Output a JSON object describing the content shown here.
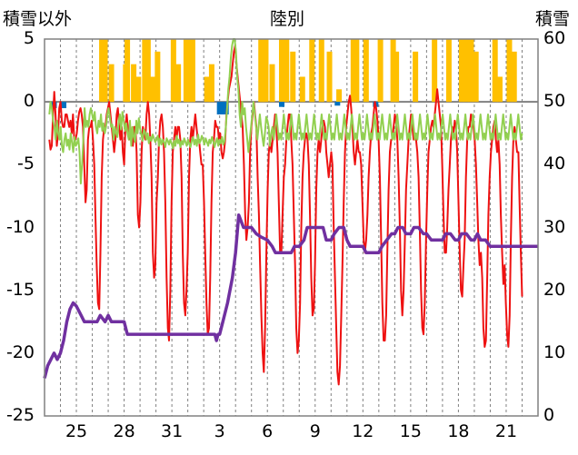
{
  "chart_data": {
    "type": "line",
    "title": "陸別",
    "ylabel_left": "積雪以外",
    "ylabel_right": "積雪",
    "ylim_left": [
      -25,
      5
    ],
    "ylim_right": [
      0,
      60
    ],
    "yticks_left": [
      "5",
      "0",
      "-5",
      "-10",
      "-15",
      "-20",
      "-25"
    ],
    "yticks_right": [
      "60",
      "50",
      "40",
      "30",
      "20",
      "10",
      "0"
    ],
    "x_tick_labels": [
      "25",
      "28",
      "31",
      "3",
      "6",
      "9",
      "12",
      "15",
      "18",
      "21"
    ],
    "x_tick_days": [
      2,
      5,
      8,
      11,
      14,
      17,
      20,
      23,
      26,
      29
    ],
    "day_range": [
      0,
      31
    ],
    "grid": true,
    "colors": {
      "temperature": "#ee1111",
      "humidity_like": "#92d050",
      "snow_depth": "#7030a0",
      "sunshine": "#ffc000",
      "precipitation": "#0070c0",
      "zero_line": "#808080",
      "grid": "#808080"
    },
    "series": [
      {
        "key": "temperature",
        "axis": "left",
        "values": [
          -3,
          -3.8,
          -3.5,
          -1,
          0.8,
          -1,
          -3.5,
          -2.5,
          -0.5,
          0,
          -1.5,
          -2,
          -2,
          -1,
          -1,
          -1.5,
          -2,
          -1.5,
          -2.5,
          -1,
          -3,
          -3,
          -2.5,
          -1.5,
          -0.8,
          -0.5,
          -1,
          -2,
          -5,
          -8,
          -7,
          -3,
          -2,
          -2,
          -1.5,
          -3,
          -5,
          -9,
          -13,
          -16,
          -16.5,
          -12,
          -6,
          -3,
          -2,
          -2,
          -1,
          -0.5,
          0,
          -1,
          -2,
          -3,
          -4,
          -3,
          -1,
          -0.5,
          -2,
          -3,
          -2,
          -4,
          -5,
          -2,
          -1,
          -2,
          -3,
          -2,
          -3,
          -3.5,
          -2,
          -2,
          -4,
          -9,
          -10,
          -8,
          -4,
          -2,
          -2.5,
          -3,
          -1,
          0,
          -1,
          -3,
          -6,
          -12,
          -14,
          -13,
          -8,
          -6,
          -3,
          -1.5,
          -1,
          -2,
          -4,
          -8,
          -14,
          -18,
          -19,
          -15,
          -8,
          -4,
          -3,
          -2,
          -3,
          -2,
          -2,
          -3,
          -6,
          -12,
          -16,
          -17,
          -15,
          -12,
          -6,
          -3,
          -2,
          -3,
          -2,
          -1,
          -2,
          -3,
          -3,
          -4,
          -5,
          -5,
          -8,
          -12,
          -16,
          -18.5,
          -18,
          -14,
          -8,
          -4,
          -3,
          -1.5,
          -2,
          -2,
          -3,
          -2.5,
          -4,
          -4.5,
          -4,
          -3,
          -1,
          0,
          1,
          1.5,
          2,
          3,
          4,
          4.5,
          3,
          2,
          1,
          0,
          -1,
          -2,
          -5,
          -9,
          -11,
          -10,
          -8,
          -4,
          -2,
          -1,
          0,
          -1,
          -2,
          -6,
          -9,
          -13,
          -17,
          -20,
          -21.5,
          -18,
          -12,
          -7,
          -4,
          -3,
          -4,
          -3,
          -2,
          -1,
          -2,
          -4,
          -8,
          -12,
          -12,
          -9,
          -6,
          -5,
          -3,
          -2,
          -1,
          -1,
          -3,
          -5,
          -9,
          -13,
          -18,
          -20,
          -19,
          -16,
          -10,
          -6,
          -4,
          -3,
          -2.5,
          -3,
          -5,
          -9,
          -14,
          -17,
          -16.5,
          -13,
          -7,
          -4,
          -3,
          -4,
          -3,
          -2,
          -1.5,
          -2,
          -4,
          -5,
          -6,
          -5,
          -4,
          -5,
          -10,
          -14,
          -18,
          -21.5,
          -22.5,
          -21,
          -17,
          -13,
          -8,
          -4,
          -2,
          -1,
          0,
          0.5,
          -0.5,
          -2,
          -4,
          -5,
          -4,
          -3,
          -4,
          -4,
          -5,
          -8,
          -11,
          -12,
          -11,
          -9,
          -6,
          -4,
          -2.5,
          -2,
          -1,
          0,
          -0.5,
          -1.5,
          -3,
          -6,
          -11,
          -16,
          -19,
          -19,
          -17,
          -12,
          -7,
          -4,
          -3,
          -3,
          -2,
          -1,
          -1.5,
          -3,
          -6,
          -10,
          -15,
          -17,
          -15,
          -11,
          -7,
          -5,
          -3,
          -2,
          -1,
          -2,
          -3,
          -2.5,
          -3,
          -4,
          -6,
          -10,
          -15,
          -18,
          -18.5,
          -16,
          -11,
          -7,
          -4,
          -3,
          -2,
          -1.5,
          -2,
          -1,
          0,
          1,
          0,
          -1,
          -2,
          -5,
          -9,
          -12,
          -12,
          -10,
          -7,
          -5,
          -3,
          -2,
          -2.5,
          -1.5,
          -2,
          -4,
          -8,
          -12,
          -15,
          -15.5,
          -13,
          -11,
          -6,
          -3,
          -2,
          -2,
          -1,
          -1.5,
          -2,
          -3,
          -5,
          -8,
          -11,
          -13,
          -12,
          -14,
          -18,
          -19.5,
          -19,
          -14,
          -9,
          -6,
          -4,
          -3,
          -2,
          -1.5,
          -3,
          -4,
          -3,
          -5,
          -9,
          -12,
          -14.5,
          -13,
          -16,
          -18.5,
          -19.5,
          -17,
          -11,
          -6,
          -3,
          -2,
          -3,
          -4,
          -4,
          -8,
          -12,
          -15.5
        ]
      },
      {
        "key": "humidity_like",
        "axis": "left",
        "values": [
          -1,
          0,
          -0.5,
          -1.5,
          -2,
          -3,
          -1.5,
          -2.5,
          -3,
          -2,
          -3.5,
          -4,
          -3,
          -2.5,
          -3.5,
          -3,
          -3.8,
          -2.5,
          -3.2,
          -4,
          -2.8,
          -3.5,
          -3.3,
          -2.9,
          -4,
          -6.5,
          -5,
          -3,
          -0.5,
          -2,
          -1.5,
          -2,
          -1,
          -0.5,
          -1,
          -1.5,
          -0.8,
          -2,
          -2.5,
          -1.5,
          -2,
          -1,
          -2.3,
          -1.7,
          -2.5,
          -2,
          -1,
          -0.5,
          -1.2,
          -2,
          -1.8,
          -3,
          -2,
          -2.5,
          -2.8,
          -1.5,
          -1,
          -2.2,
          -0.8,
          -1.5,
          -2.3,
          -1.7,
          -2.5,
          -3,
          -1.5,
          -3.5,
          -2,
          -2.8,
          -3.2,
          -1.5,
          -2.5,
          -1.3,
          -2.1,
          -2.6,
          -3.1,
          -2.2,
          -2.4,
          -3,
          -2.5,
          -3.3,
          -2.8,
          -3.1,
          -2.6,
          -2.9,
          -3.2,
          -3,
          -2.7,
          -3.5,
          -2.9,
          -3.4,
          -3,
          -3.2,
          -3.6,
          -2.9,
          -3.1,
          -3.4,
          -3,
          -3.3,
          -3.7,
          -3.1,
          -3.5,
          -2.7,
          -3.3,
          -3,
          -3.6,
          -3.1,
          -3.4,
          -2.9,
          -3.2,
          -3.5,
          -3,
          -3.3,
          -3.6,
          -3.1,
          -2.8,
          -3.4,
          -3,
          -3.5,
          -2.6,
          -3.3,
          -3.1,
          -2.7,
          -3,
          -3.4,
          -2.9,
          -3.2,
          -3.5,
          -3,
          -3.3,
          -2.8,
          -3.1,
          -3.6,
          -3.2,
          -2.9,
          -3.5,
          -3,
          -3.3,
          -2.8,
          -3.4,
          -3.1,
          -2,
          -0.5,
          1,
          2,
          3.5,
          4.5,
          5,
          5,
          4,
          2,
          1,
          -1,
          -2,
          0,
          -1,
          -0.5,
          -2,
          -3,
          -4,
          -3,
          -2,
          -1,
          0,
          -1,
          -2,
          -3,
          -2,
          -1,
          -2,
          -2.8,
          -3.5,
          -2.5,
          -1.2,
          -1.5,
          -2,
          -3.5,
          -2.5,
          -2,
          -3,
          -2,
          -1,
          -2,
          -3,
          -2.5,
          -3,
          -2,
          -1,
          -2,
          -3,
          -2.5,
          -3,
          -2,
          -1,
          -2,
          -3,
          -2.5,
          -3,
          -2,
          -1,
          -2,
          -3,
          -2.5,
          -3,
          -2,
          -1,
          -2,
          -3,
          -2.5,
          -3,
          -2,
          -1,
          -2,
          -3,
          -2.5,
          -3,
          -2,
          -1,
          -2,
          -3,
          -2.5,
          -3,
          -2,
          -1,
          -2,
          -3,
          -2.5,
          -3,
          -2,
          -1,
          -2,
          -3,
          -2.5,
          -3,
          -2,
          -1,
          -2,
          -3,
          -2.5,
          -3,
          -2,
          -1,
          -2,
          -3,
          -2.5,
          -3,
          -2,
          -1,
          -2,
          -3,
          -2.5,
          -3,
          -2,
          -1,
          -2,
          -3,
          -2.5,
          -3,
          -2,
          -1,
          -2,
          -3,
          -2.5,
          -3,
          -2,
          -1,
          -2,
          -3,
          -2.5,
          -3,
          -2,
          -1,
          -2,
          -3,
          -2.5,
          -3,
          -2,
          -1,
          -2,
          -3,
          -2.5,
          -3,
          -2,
          -1,
          -2,
          -3,
          -2.5,
          -3,
          -2,
          -1,
          -2,
          -3,
          -2.5,
          -3,
          -2,
          -1,
          -2,
          -3,
          -2.5,
          -3,
          -2,
          -1,
          -2,
          -3,
          -2.5,
          -3,
          -2,
          -1,
          -2,
          -3,
          -2.5,
          -3,
          -2,
          -1,
          -2,
          -3,
          -2.5,
          -3,
          -2,
          -1,
          -2,
          -3,
          -2.5,
          -3,
          -2,
          -1,
          -2,
          -3,
          -2.5,
          -3,
          -2,
          -1,
          -2,
          -3,
          -2.5,
          -3,
          -2,
          -1,
          -2,
          -3,
          -2.5,
          -3,
          -2,
          -1,
          -2,
          -3,
          -2.5,
          -3,
          -2,
          -1,
          -2,
          -3,
          -2.5,
          -3,
          -2,
          -1,
          -2,
          -3,
          -2.5,
          -3,
          -2,
          -1,
          -2,
          -3,
          -2.5,
          -3,
          -2,
          -1,
          -2,
          -3,
          -2.5,
          -3,
          -2,
          -1,
          -2,
          -3,
          -2.5
        ]
      },
      {
        "key": "snow_depth",
        "axis": "right",
        "step_points": [
          [
            0,
            6
          ],
          [
            0.2,
            8
          ],
          [
            0.4,
            9
          ],
          [
            0.6,
            10
          ],
          [
            0.8,
            9
          ],
          [
            1,
            10
          ],
          [
            1.2,
            12
          ],
          [
            1.4,
            15
          ],
          [
            1.6,
            17
          ],
          [
            1.8,
            18
          ],
          [
            2,
            17.5
          ],
          [
            2.3,
            16
          ],
          [
            2.5,
            15
          ],
          [
            3.3,
            15
          ],
          [
            3.5,
            16
          ],
          [
            3.8,
            15
          ],
          [
            4,
            16
          ],
          [
            4.2,
            15
          ],
          [
            5,
            15
          ],
          [
            5.2,
            13
          ],
          [
            10.7,
            13
          ],
          [
            10.8,
            12
          ],
          [
            10.9,
            13
          ],
          [
            11,
            13
          ],
          [
            11.2,
            15
          ],
          [
            11.5,
            18
          ],
          [
            11.8,
            22
          ],
          [
            12,
            26
          ],
          [
            12.2,
            32
          ],
          [
            12.5,
            30
          ],
          [
            13,
            30
          ],
          [
            13.3,
            29
          ],
          [
            13.6,
            28.5
          ],
          [
            14,
            28
          ],
          [
            14.3,
            27
          ],
          [
            14.5,
            26
          ],
          [
            15.5,
            26
          ],
          [
            15.7,
            27
          ],
          [
            16,
            27
          ],
          [
            16.3,
            28
          ],
          [
            16.5,
            30
          ],
          [
            17.5,
            30
          ],
          [
            17.7,
            28
          ],
          [
            18,
            28
          ],
          [
            18.2,
            29
          ],
          [
            18.5,
            30
          ],
          [
            18.8,
            30
          ],
          [
            19,
            28
          ],
          [
            19.2,
            27
          ],
          [
            20,
            27
          ],
          [
            20.2,
            26
          ],
          [
            21,
            26
          ],
          [
            21.2,
            27
          ],
          [
            21.5,
            28
          ],
          [
            21.8,
            29
          ],
          [
            22,
            29
          ],
          [
            22.2,
            30
          ],
          [
            22.5,
            30
          ],
          [
            22.7,
            29
          ],
          [
            23,
            29
          ],
          [
            23.2,
            30
          ],
          [
            23.5,
            30
          ],
          [
            23.8,
            29
          ],
          [
            24,
            29
          ],
          [
            24.3,
            28
          ],
          [
            25,
            28
          ],
          [
            25.2,
            29
          ],
          [
            25.5,
            29
          ],
          [
            25.8,
            28
          ],
          [
            26,
            28
          ],
          [
            26.2,
            29
          ],
          [
            26.5,
            29
          ],
          [
            26.8,
            28
          ],
          [
            27,
            28
          ],
          [
            27.2,
            29
          ],
          [
            27.4,
            28
          ],
          [
            27.7,
            28
          ],
          [
            28,
            27
          ],
          [
            31,
            27
          ]
        ]
      }
    ],
    "sunshine_bars_left_units": [
      [
        3.6,
        5
      ],
      [
        3.8,
        5
      ],
      [
        4.2,
        3
      ],
      [
        5.1,
        3
      ],
      [
        5.2,
        5
      ],
      [
        5.6,
        3
      ],
      [
        5.9,
        2
      ],
      [
        6.3,
        5
      ],
      [
        6.5,
        5
      ],
      [
        6.8,
        2
      ],
      [
        7.1,
        4
      ],
      [
        8.1,
        5
      ],
      [
        8.4,
        3
      ],
      [
        8.9,
        5
      ],
      [
        9.1,
        5
      ],
      [
        9.3,
        5
      ],
      [
        10.2,
        2
      ],
      [
        10.5,
        3
      ],
      [
        13.6,
        5
      ],
      [
        13.7,
        4
      ],
      [
        13.9,
        5
      ],
      [
        14.3,
        3
      ],
      [
        14.9,
        5
      ],
      [
        15.2,
        5
      ],
      [
        15.6,
        4
      ],
      [
        16.2,
        2
      ],
      [
        16.8,
        5
      ],
      [
        17.4,
        5
      ],
      [
        17.9,
        4
      ],
      [
        18.5,
        1
      ],
      [
        19.4,
        5
      ],
      [
        19.6,
        5
      ],
      [
        20.2,
        5
      ],
      [
        21.1,
        5
      ],
      [
        21.9,
        5
      ],
      [
        22.1,
        4
      ],
      [
        23.3,
        4
      ],
      [
        24.5,
        5
      ],
      [
        25.4,
        5
      ],
      [
        26.2,
        5
      ],
      [
        26.5,
        5
      ],
      [
        26.8,
        5
      ],
      [
        27.1,
        4
      ],
      [
        28.3,
        5
      ],
      [
        28.6,
        2
      ],
      [
        29.2,
        5
      ],
      [
        29.5,
        4
      ]
    ],
    "precip_bars_left_units": [
      [
        0.6,
        -0.5
      ],
      [
        1.2,
        -0.5
      ],
      [
        11.0,
        -1
      ],
      [
        11.2,
        -1
      ],
      [
        11.4,
        -1
      ],
      [
        14.9,
        -0.4
      ],
      [
        18.4,
        -0.3
      ],
      [
        20.8,
        -0.4
      ]
    ]
  }
}
